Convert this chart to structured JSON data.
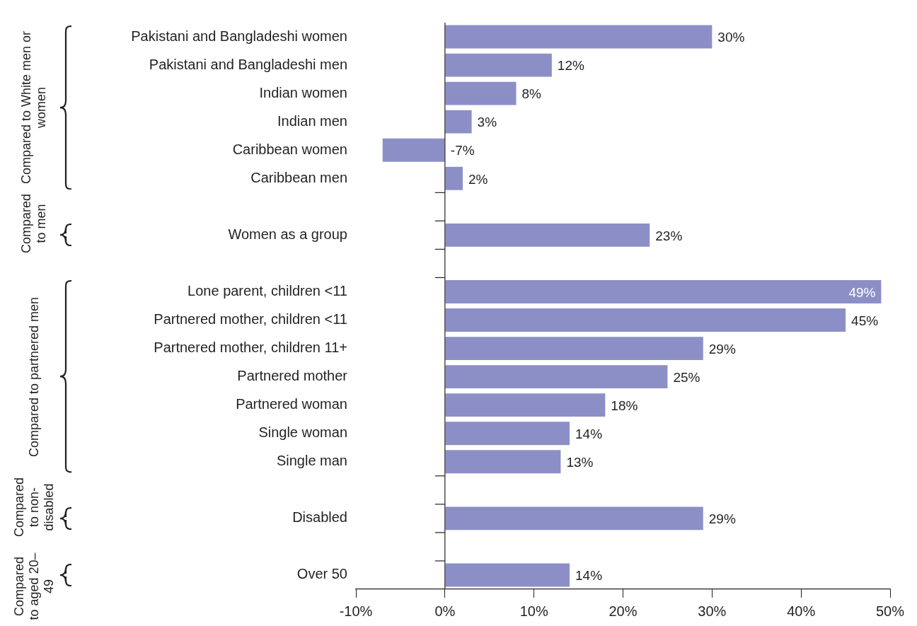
{
  "chart_data": {
    "type": "bar",
    "orientation": "horizontal",
    "categories": [
      "Pakistani and Bangladeshi women",
      "Pakistani and Bangladeshi men",
      "Indian women",
      "Indian men",
      "Caribbean women",
      "Caribbean men",
      null,
      "Women as a group",
      null,
      "Lone parent, children <11",
      "Partnered mother, children <11",
      "Partnered mother, children 11+",
      "Partnered mother",
      "Partnered woman",
      "Single woman",
      "Single man",
      null,
      "Disabled",
      null,
      "Over 50"
    ],
    "values": [
      30,
      12,
      8,
      3,
      -7,
      2,
      null,
      23,
      null,
      49,
      45,
      29,
      25,
      18,
      14,
      13,
      null,
      29,
      null,
      14
    ],
    "value_labels": [
      "30%",
      "12%",
      "8%",
      "3%",
      "-7%",
      "2%",
      null,
      "23%",
      null,
      "49%",
      "45%",
      "29%",
      "25%",
      "18%",
      "14%",
      "13%",
      null,
      "29%",
      null,
      "14%"
    ],
    "color": "#8c8fc6",
    "xlim": [
      -10,
      50
    ],
    "xticks": [
      {
        "value": -10,
        "label": "-10%"
      },
      {
        "value": 0,
        "label": "0%"
      },
      {
        "value": 10,
        "label": "10%"
      },
      {
        "value": 20,
        "label": "20%"
      },
      {
        "value": 30,
        "label": "30%"
      },
      {
        "value": 40,
        "label": "40%"
      },
      {
        "value": 50,
        "label": "50%"
      }
    ],
    "annotations": [
      "Compared to White men or women",
      "Compared to men",
      "Compared to partnered men",
      "Compared to non-disabled",
      "Compared to aged 20–49"
    ],
    "legend": false
  }
}
